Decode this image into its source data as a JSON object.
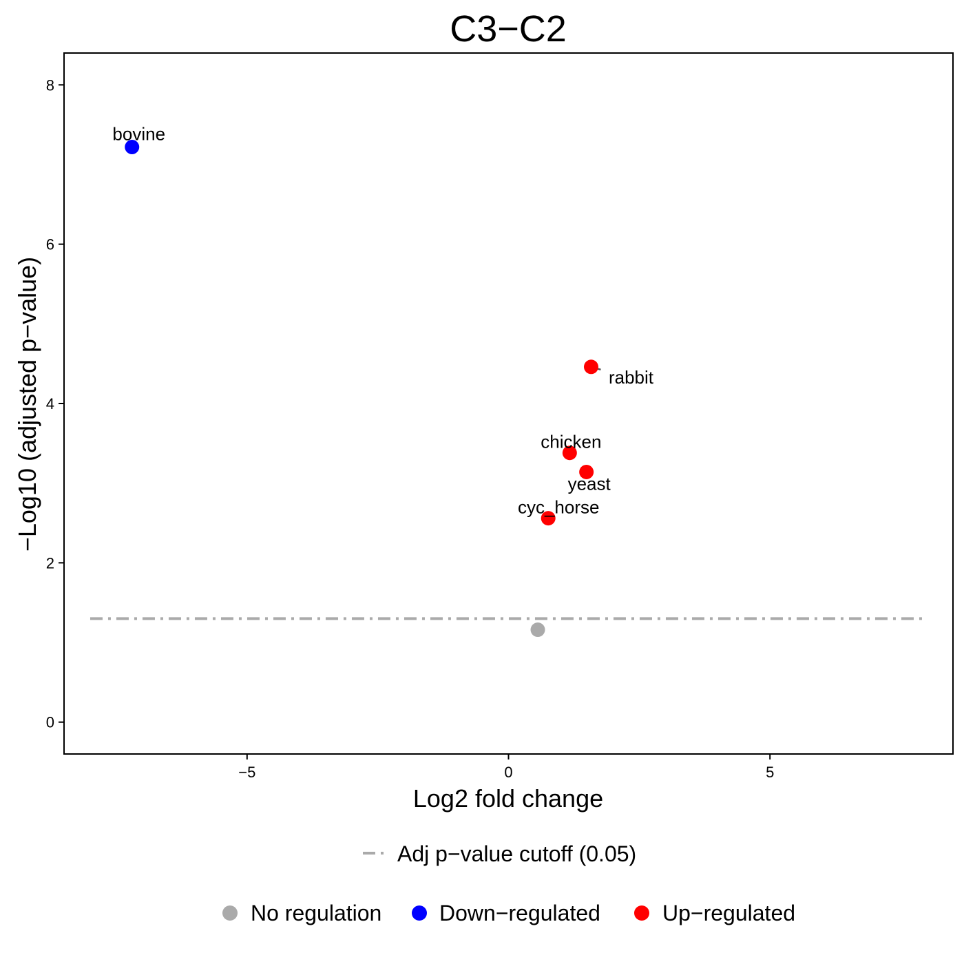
{
  "chart_data": {
    "type": "scatter",
    "title": "C3−C2",
    "xlabel": "Log2 fold change",
    "ylabel": "−Log10 (adjusted p−value)",
    "xlim": [
      -8.5,
      8.5
    ],
    "ylim": [
      -0.4,
      8.4
    ],
    "xticks": [
      {
        "value": -5,
        "label": "−5"
      },
      {
        "value": 0,
        "label": "0"
      },
      {
        "value": 5,
        "label": "5"
      }
    ],
    "yticks": [
      {
        "value": 0,
        "label": "0"
      },
      {
        "value": 2,
        "label": "2"
      },
      {
        "value": 4,
        "label": "4"
      },
      {
        "value": 6,
        "label": "6"
      },
      {
        "value": 8,
        "label": "8"
      }
    ],
    "grid": false,
    "cutoff": {
      "y": 1.3,
      "label": "Adj p−value cutoff (0.05)",
      "color": "#aaaaaa",
      "x_range": [
        -8.0,
        8.0
      ]
    },
    "categories": [
      {
        "name": "No regulation",
        "color": "#aaaaaa"
      },
      {
        "name": "Down−regulated",
        "color": "#0000ff"
      },
      {
        "name": "Up−regulated",
        "color": "#ff0000"
      }
    ],
    "points": [
      {
        "label": "bovine",
        "x": -7.2,
        "y": 7.22,
        "category": "Down−regulated"
      },
      {
        "label": "rabbit",
        "x": 1.58,
        "y": 4.46,
        "category": "Up−regulated"
      },
      {
        "label": "chicken",
        "x": 1.17,
        "y": 3.38,
        "category": "Up−regulated"
      },
      {
        "label": "yeast",
        "x": 1.49,
        "y": 3.14,
        "category": "Up−regulated"
      },
      {
        "label": "cyc_horse",
        "x": 0.76,
        "y": 2.56,
        "category": "Up−regulated"
      },
      {
        "label": "",
        "x": 0.56,
        "y": 1.16,
        "category": "No regulation"
      }
    ],
    "legend_position": "bottom"
  }
}
